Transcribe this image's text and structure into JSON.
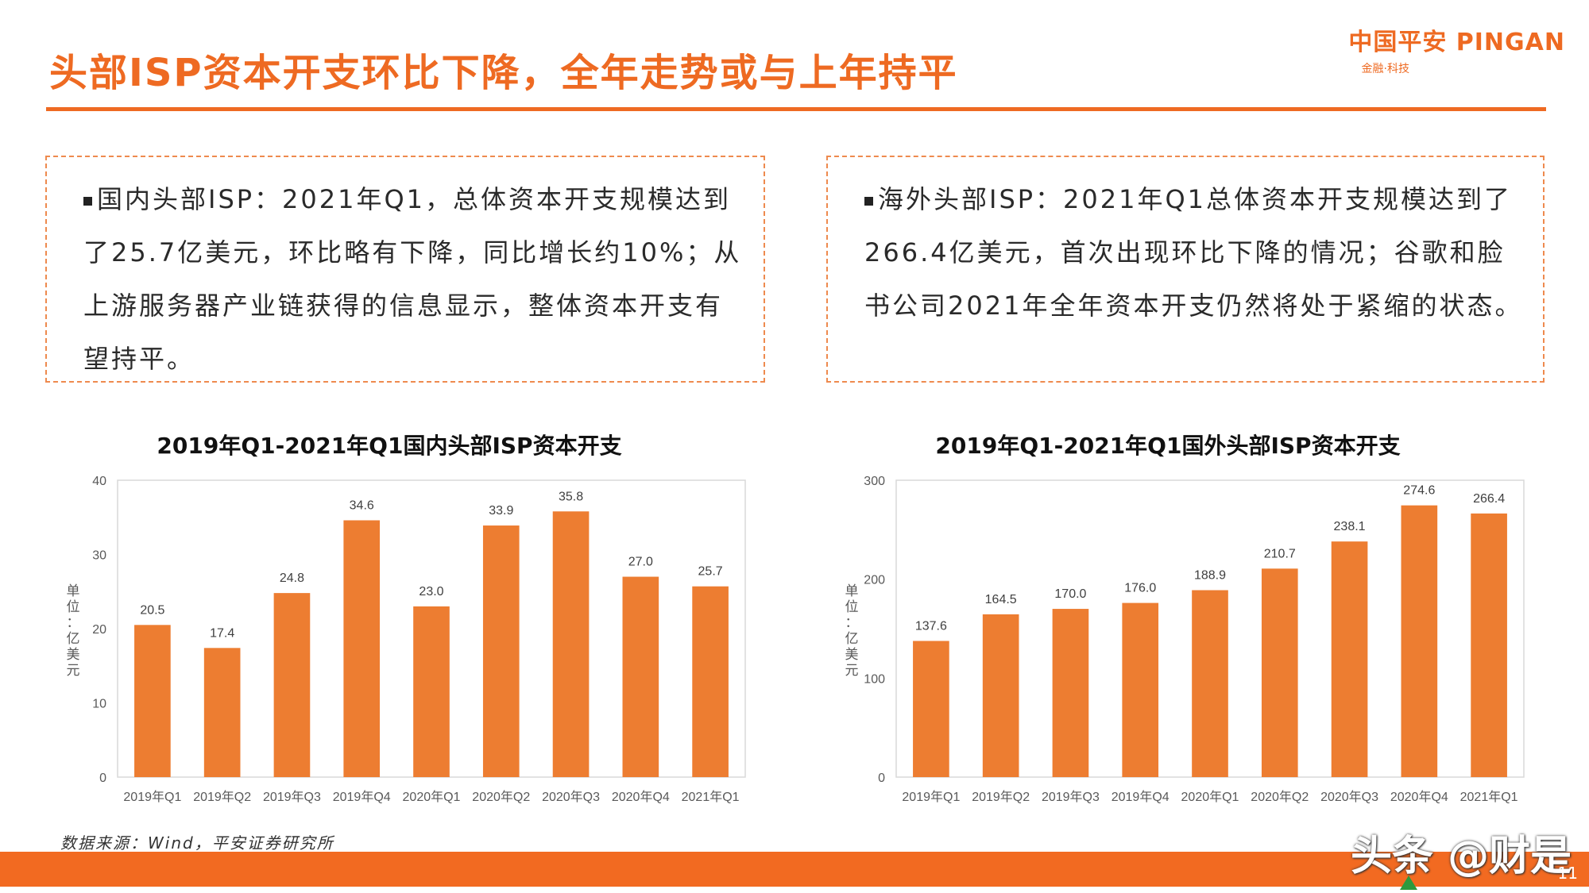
{
  "slide": {
    "title": "头部ISP资本开支环比下降，全年走势或与上年持平",
    "logo": {
      "main": "中国平安 PINGAN",
      "sub": "金融·科技"
    },
    "left_box_text": "国内头部ISP：2021年Q1，总体资本开支规模达到了25.7亿美元，环比略有下降，同比增长约10%；从上游服务器产业链获得的信息显示，整体资本开支有望持平。",
    "right_box_text": "海外头部ISP：2021年Q1总体资本开支规模达到了266.4亿美元，首次出现环比下降的情况；谷歌和脸书公司2021年全年资本开支仍然将处于紧缩的状态。",
    "source": "数据来源：Wind，平安证券研究所",
    "watermark": "头条 @财是",
    "page_number": "11"
  },
  "colors": {
    "accent": "#ee6a22",
    "bar": "#ed7d31",
    "footer": "#f26a21"
  },
  "chart_data": [
    {
      "type": "bar",
      "title": "2019年Q1-2021年Q1国内头部ISP资本开支",
      "ylabel": "单位：亿美元",
      "ylim": [
        0,
        40
      ],
      "yticks": [
        0,
        10,
        20,
        30,
        40
      ],
      "categories": [
        "2019年Q1",
        "2019年Q2",
        "2019年Q3",
        "2019年Q4",
        "2020年Q1",
        "2020年Q2",
        "2020年Q3",
        "2020年Q4",
        "2021年Q1"
      ],
      "values": [
        20.5,
        17.4,
        24.8,
        34.6,
        23.0,
        33.9,
        35.8,
        27.0,
        25.7
      ],
      "labels": [
        "20.5",
        "17.4",
        "24.8",
        "34.6",
        "23.0",
        "33.9",
        "35.8",
        "27.0",
        "25.7"
      ],
      "grid": false
    },
    {
      "type": "bar",
      "title": "2019年Q1-2021年Q1国外头部ISP资本开支",
      "ylabel": "单位：亿美元",
      "ylim": [
        0,
        300
      ],
      "yticks": [
        0,
        100,
        200,
        300
      ],
      "categories": [
        "2019年Q1",
        "2019年Q2",
        "2019年Q3",
        "2019年Q4",
        "2020年Q1",
        "2020年Q2",
        "2020年Q3",
        "2020年Q4",
        "2021年Q1"
      ],
      "values": [
        137.6,
        164.5,
        170.0,
        176.0,
        188.9,
        210.7,
        238.1,
        274.6,
        266.4
      ],
      "labels": [
        "137.6",
        "164.5",
        "170.0",
        "176.0",
        "188.9",
        "210.7",
        "238.1",
        "274.6",
        "266.4"
      ],
      "grid": false
    }
  ]
}
